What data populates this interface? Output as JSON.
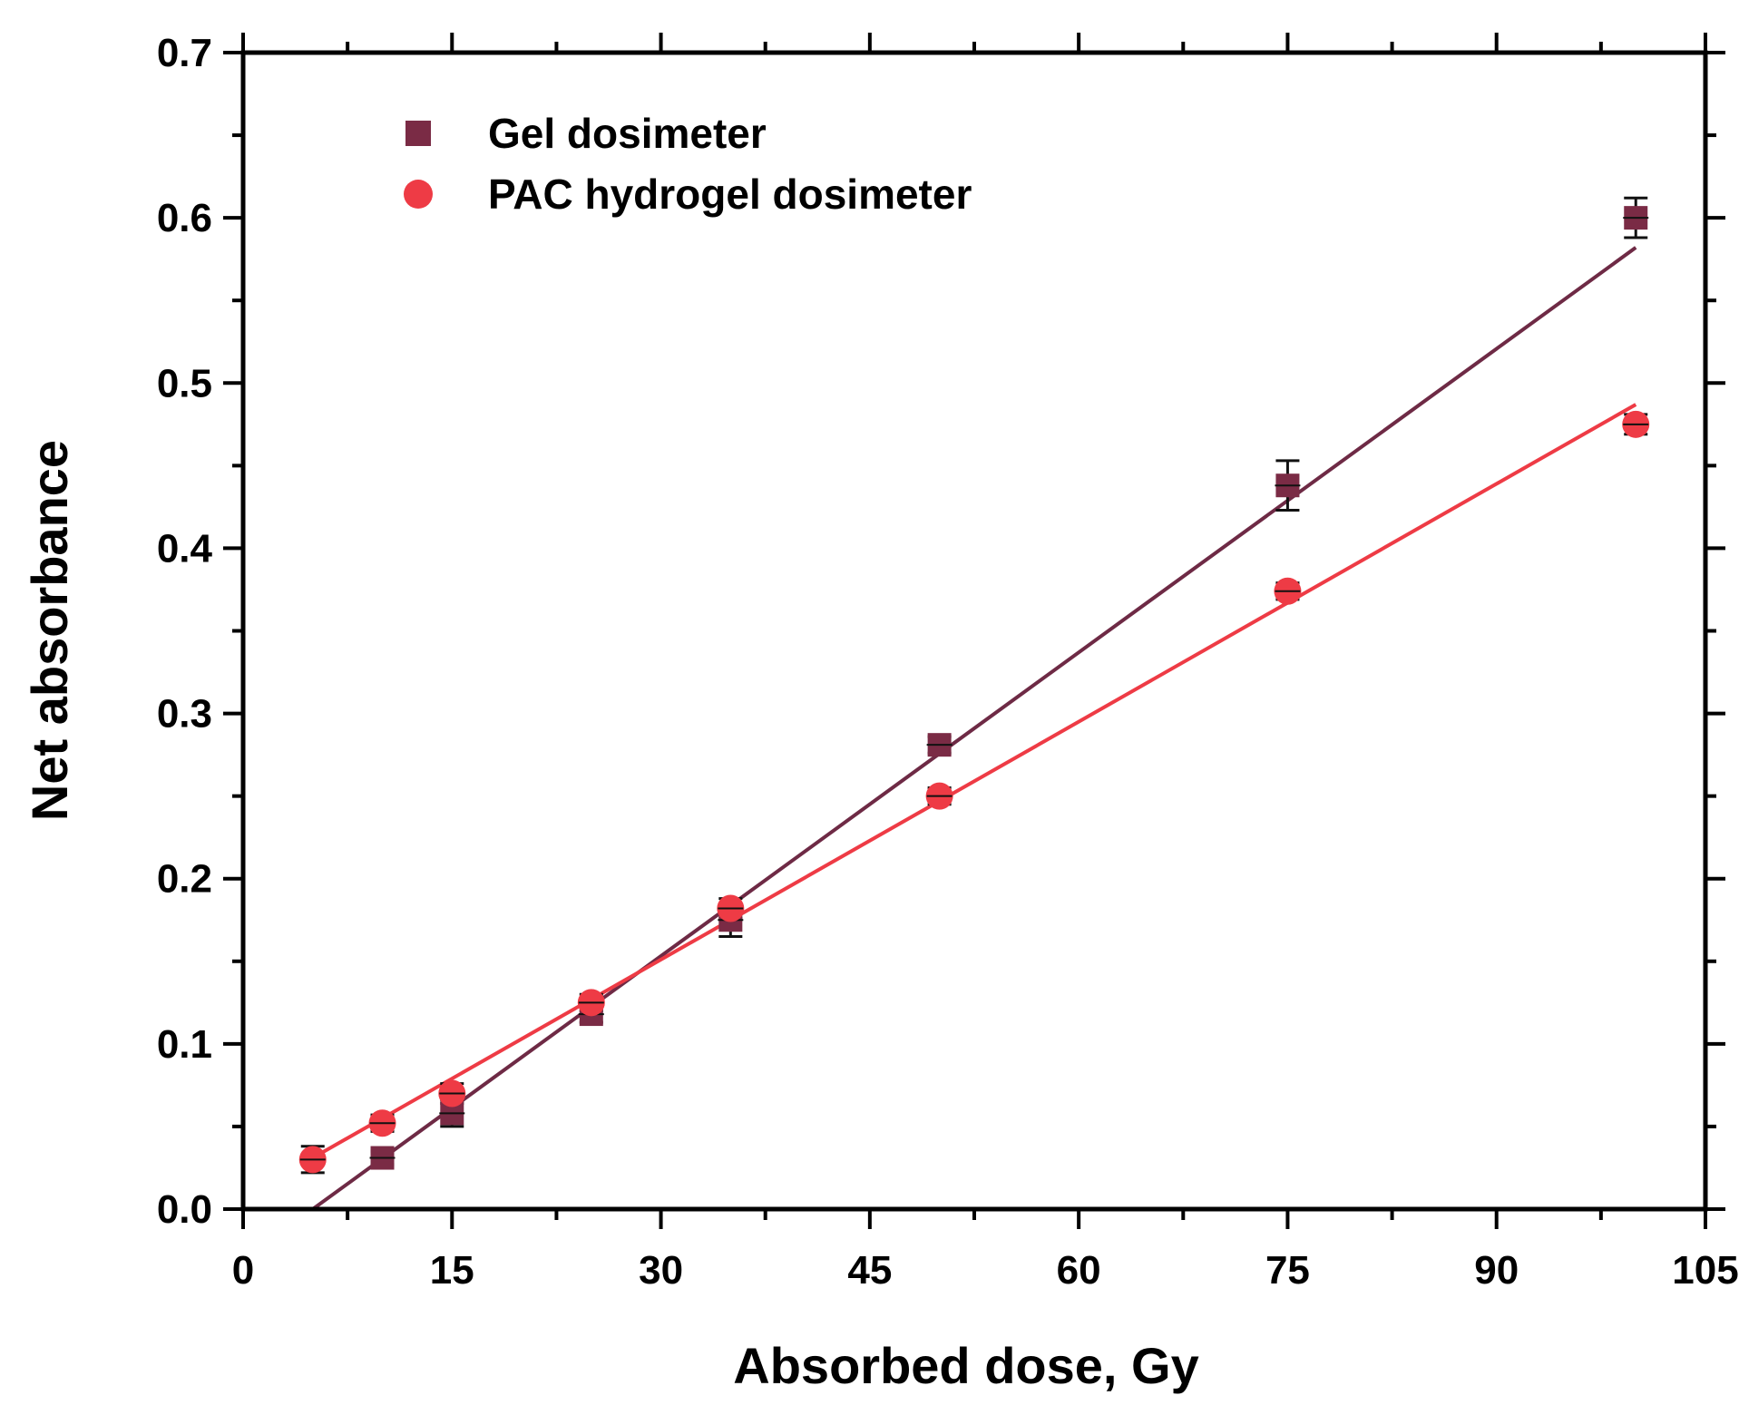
{
  "chart_data": {
    "type": "scatter",
    "title": "",
    "xlabel": "Absorbed dose, Gy",
    "ylabel": "Net absorbance",
    "xlim": [
      0,
      105
    ],
    "ylim": [
      0,
      0.7
    ],
    "xticks": [
      0,
      15,
      30,
      45,
      60,
      75,
      90,
      105
    ],
    "xtick_labels": [
      "0",
      "15",
      "30",
      "45",
      "60",
      "75",
      "90",
      "105"
    ],
    "yticks": [
      0.0,
      0.1,
      0.2,
      0.3,
      0.4,
      0.5,
      0.6,
      0.7
    ],
    "ytick_labels": [
      "0.0",
      "0.1",
      "0.2",
      "0.3",
      "0.4",
      "0.5",
      "0.6",
      "0.7"
    ],
    "grid": false,
    "legend_position": "top-left",
    "series": [
      {
        "name": "Gel dosimeter",
        "marker": "square",
        "color": "#7a2b45",
        "x": [
          10,
          15,
          25,
          35,
          50,
          75,
          100
        ],
        "y": [
          0.031,
          0.058,
          0.118,
          0.175,
          0.281,
          0.438,
          0.6
        ],
        "error": [
          0.004,
          0.008,
          0.005,
          0.01,
          0.005,
          0.015,
          0.012
        ],
        "fit": {
          "x": [
            5,
            100
          ],
          "y": [
            0.0,
            0.582
          ],
          "color": "#6e2a45"
        }
      },
      {
        "name": "PAC hydrogel dosimeter",
        "marker": "circle",
        "color": "#ee3b45",
        "x": [
          5,
          10,
          15,
          25,
          35,
          50,
          75,
          100
        ],
        "y": [
          0.03,
          0.052,
          0.07,
          0.125,
          0.182,
          0.25,
          0.374,
          0.475
        ],
        "error": [
          0.008,
          0.005,
          0.006,
          0.005,
          0.006,
          0.005,
          0.005,
          0.006
        ],
        "fit": {
          "x": [
            5,
            100
          ],
          "y": [
            0.031,
            0.487
          ],
          "color": "#ee3b45"
        }
      }
    ]
  }
}
